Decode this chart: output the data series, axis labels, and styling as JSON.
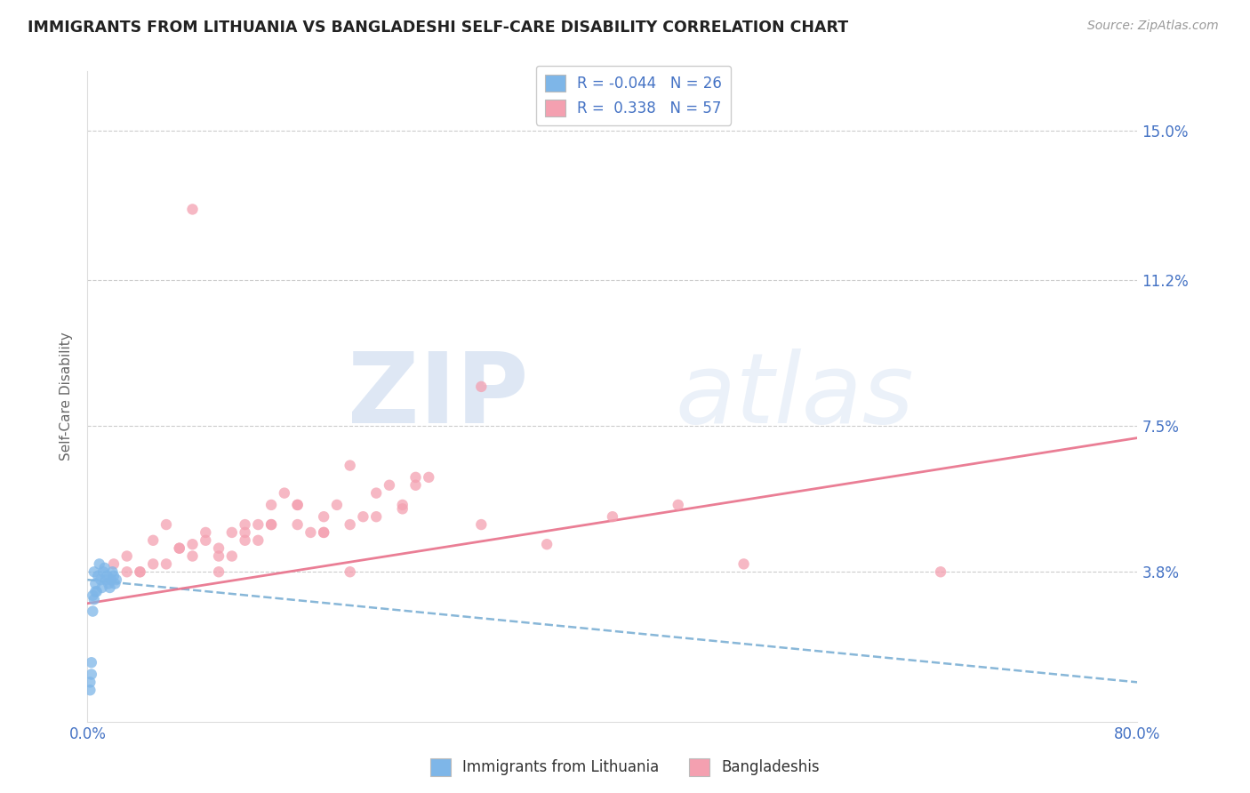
{
  "title": "IMMIGRANTS FROM LITHUANIA VS BANGLADESHI SELF-CARE DISABILITY CORRELATION CHART",
  "source": "Source: ZipAtlas.com",
  "ylabel": "Self-Care Disability",
  "legend_label1": "Immigrants from Lithuania",
  "legend_label2": "Bangladeshis",
  "r1": -0.044,
  "n1": 26,
  "r2": 0.338,
  "n2": 57,
  "xlim": [
    0.0,
    0.8
  ],
  "ylim": [
    0.0,
    0.165
  ],
  "yticks": [
    0.038,
    0.075,
    0.112,
    0.15
  ],
  "ytick_labels": [
    "3.8%",
    "7.5%",
    "11.2%",
    "15.0%"
  ],
  "color_blue": "#7EB6E8",
  "color_pink": "#F4A0B0",
  "color_trendline_blue": "#7BAFD4",
  "color_trendline_pink": "#E8708A",
  "blue_trend_x0": 0.0,
  "blue_trend_y0": 0.036,
  "blue_trend_x1": 0.8,
  "blue_trend_y1": 0.01,
  "pink_trend_x0": 0.0,
  "pink_trend_y0": 0.03,
  "pink_trend_x1": 0.8,
  "pink_trend_y1": 0.072,
  "scatter_blue_x": [
    0.002,
    0.003,
    0.004,
    0.005,
    0.006,
    0.007,
    0.008,
    0.009,
    0.01,
    0.011,
    0.012,
    0.013,
    0.014,
    0.015,
    0.016,
    0.017,
    0.018,
    0.019,
    0.02,
    0.021,
    0.022,
    0.002,
    0.003,
    0.004,
    0.005,
    0.006
  ],
  "scatter_blue_y": [
    0.01,
    0.015,
    0.032,
    0.038,
    0.035,
    0.033,
    0.037,
    0.04,
    0.036,
    0.034,
    0.038,
    0.039,
    0.036,
    0.037,
    0.035,
    0.034,
    0.036,
    0.038,
    0.037,
    0.035,
    0.036,
    0.008,
    0.012,
    0.028,
    0.031,
    0.033
  ],
  "scatter_pink_x": [
    0.02,
    0.03,
    0.04,
    0.05,
    0.06,
    0.07,
    0.08,
    0.09,
    0.1,
    0.11,
    0.12,
    0.13,
    0.14,
    0.15,
    0.16,
    0.17,
    0.18,
    0.19,
    0.2,
    0.21,
    0.22,
    0.23,
    0.24,
    0.25,
    0.26,
    0.08,
    0.1,
    0.12,
    0.14,
    0.16,
    0.18,
    0.03,
    0.05,
    0.07,
    0.09,
    0.11,
    0.13,
    0.2,
    0.22,
    0.24,
    0.04,
    0.06,
    0.08,
    0.1,
    0.12,
    0.14,
    0.16,
    0.18,
    0.45,
    0.3,
    0.35,
    0.4,
    0.5,
    0.2,
    0.25,
    0.65,
    0.3
  ],
  "scatter_pink_y": [
    0.04,
    0.042,
    0.038,
    0.046,
    0.05,
    0.044,
    0.13,
    0.048,
    0.038,
    0.042,
    0.05,
    0.046,
    0.055,
    0.058,
    0.05,
    0.048,
    0.052,
    0.055,
    0.038,
    0.052,
    0.058,
    0.06,
    0.054,
    0.06,
    0.062,
    0.045,
    0.042,
    0.048,
    0.05,
    0.055,
    0.048,
    0.038,
    0.04,
    0.044,
    0.046,
    0.048,
    0.05,
    0.05,
    0.052,
    0.055,
    0.038,
    0.04,
    0.042,
    0.044,
    0.046,
    0.05,
    0.055,
    0.048,
    0.055,
    0.05,
    0.045,
    0.052,
    0.04,
    0.065,
    0.062,
    0.038,
    0.085
  ]
}
